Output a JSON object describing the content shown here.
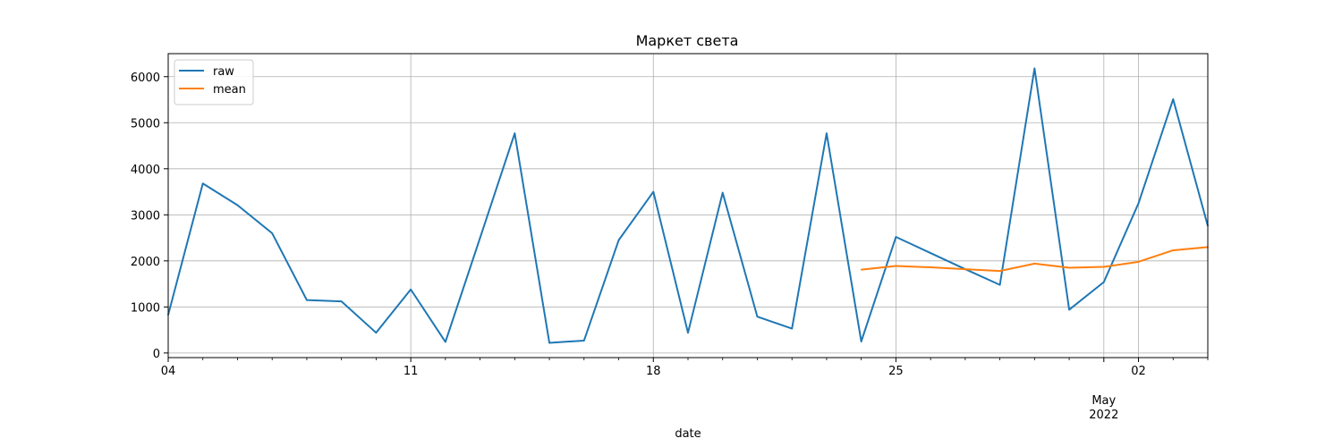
{
  "chart_data": {
    "type": "line",
    "title": "Маркет света",
    "xlabel": "date",
    "ylabel": "",
    "ylim": [
      -100,
      6500
    ],
    "xlim": [
      "2022-04-04",
      "2022-05-04"
    ],
    "y_ticks": [
      0,
      1000,
      2000,
      3000,
      4000,
      5000,
      6000
    ],
    "x_ticks": [
      {
        "date": "2022-04-04",
        "label": "04"
      },
      {
        "date": "2022-04-11",
        "label": "11"
      },
      {
        "date": "2022-04-18",
        "label": "18"
      },
      {
        "date": "2022-04-25",
        "label": "25"
      },
      {
        "date": "2022-05-01",
        "label": "May\n2022"
      },
      {
        "date": "2022-05-02",
        "label": "02"
      }
    ],
    "grid": true,
    "legend": "top-left",
    "series": [
      {
        "name": "raw",
        "color": "#1f77b4",
        "points": [
          [
            "2022-04-04",
            830
          ],
          [
            "2022-04-05",
            3680
          ],
          [
            "2022-04-06",
            3210
          ],
          [
            "2022-04-07",
            2600
          ],
          [
            "2022-04-08",
            1150
          ],
          [
            "2022-04-09",
            1120
          ],
          [
            "2022-04-10",
            440
          ],
          [
            "2022-04-11",
            1380
          ],
          [
            "2022-04-12",
            240
          ],
          [
            "2022-04-13",
            2500
          ],
          [
            "2022-04-14",
            4770
          ],
          [
            "2022-04-15",
            220
          ],
          [
            "2022-04-16",
            270
          ],
          [
            "2022-04-17",
            2450
          ],
          [
            "2022-04-18",
            3500
          ],
          [
            "2022-04-19",
            440
          ],
          [
            "2022-04-20",
            3480
          ],
          [
            "2022-04-21",
            790
          ],
          [
            "2022-04-22",
            530
          ],
          [
            "2022-04-23",
            4770
          ],
          [
            "2022-04-24",
            250
          ],
          [
            "2022-04-25",
            2520
          ],
          [
            "2022-04-26",
            2170
          ],
          [
            "2022-04-27",
            1820
          ],
          [
            "2022-04-28",
            1480
          ],
          [
            "2022-04-29",
            6180
          ],
          [
            "2022-04-30",
            940
          ],
          [
            "2022-05-01",
            1540
          ],
          [
            "2022-05-02",
            3250
          ],
          [
            "2022-05-03",
            5510
          ],
          [
            "2022-05-04",
            2760
          ]
        ]
      },
      {
        "name": "mean",
        "color": "#ff7f0e",
        "points": [
          [
            "2022-04-24",
            1810
          ],
          [
            "2022-04-25",
            1890
          ],
          [
            "2022-04-26",
            1860
          ],
          [
            "2022-04-27",
            1820
          ],
          [
            "2022-04-28",
            1780
          ],
          [
            "2022-04-29",
            1940
          ],
          [
            "2022-04-30",
            1850
          ],
          [
            "2022-05-01",
            1870
          ],
          [
            "2022-05-02",
            1980
          ],
          [
            "2022-05-03",
            2230
          ],
          [
            "2022-05-04",
            2300
          ]
        ]
      }
    ]
  }
}
